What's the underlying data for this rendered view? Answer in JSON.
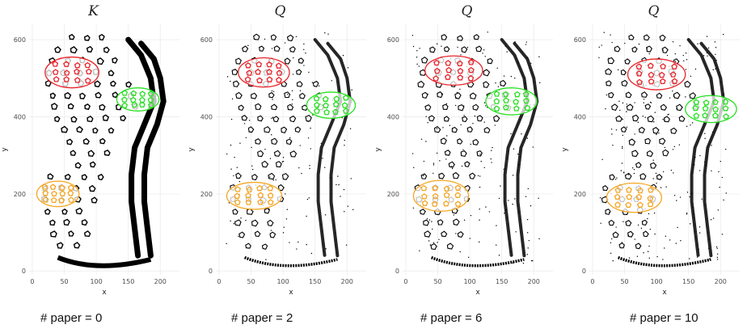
{
  "chart_data": [
    {
      "type": "scatter",
      "title": "K",
      "caption": "# paper = 0",
      "xlabel": "x",
      "ylabel": "y",
      "xlim": [
        -5,
        230
      ],
      "ylim": [
        -10,
        640
      ],
      "x_ticks": [
        0,
        50,
        100,
        150,
        200
      ],
      "y_ticks": [
        0,
        200,
        400,
        600
      ],
      "grid": true,
      "regions": [
        {
          "color": "#e8232a",
          "cx": 62,
          "cy": 515,
          "rx": 42,
          "ry": 40
        },
        {
          "color": "#27e021",
          "cx": 165,
          "cy": 445,
          "rx": 33,
          "ry": 30
        },
        {
          "color": "#f5a623",
          "cx": 40,
          "cy": 200,
          "rx": 33,
          "ry": 33
        }
      ]
    },
    {
      "type": "scatter",
      "title": "Q",
      "caption": "# paper = 2",
      "xlabel": "x",
      "ylabel": "y",
      "xlim": [
        -5,
        230
      ],
      "ylim": [
        -10,
        640
      ],
      "x_ticks": [
        0,
        50,
        100,
        150,
        200
      ],
      "y_ticks": [
        0,
        200,
        400,
        600
      ],
      "grid": true,
      "regions": [
        {
          "color": "#e8232a",
          "cx": 70,
          "cy": 515,
          "rx": 40,
          "ry": 38
        },
        {
          "color": "#27e021",
          "cx": 175,
          "cy": 430,
          "rx": 38,
          "ry": 34
        },
        {
          "color": "#f5a623",
          "cx": 55,
          "cy": 195,
          "rx": 43,
          "ry": 35
        }
      ]
    },
    {
      "type": "scatter",
      "title": "Q",
      "caption": "# paper = 6",
      "xlabel": "x",
      "ylabel": "y",
      "xlim": [
        -5,
        230
      ],
      "ylim": [
        -10,
        640
      ],
      "x_ticks": [
        0,
        50,
        100,
        150,
        200
      ],
      "y_ticks": [
        0,
        200,
        400,
        600
      ],
      "grid": true,
      "regions": [
        {
          "color": "#e8232a",
          "cx": 75,
          "cy": 520,
          "rx": 45,
          "ry": 38
        },
        {
          "color": "#27e021",
          "cx": 165,
          "cy": 440,
          "rx": 40,
          "ry": 35
        },
        {
          "color": "#f5a623",
          "cx": 55,
          "cy": 195,
          "rx": 43,
          "ry": 40
        }
      ]
    },
    {
      "type": "scatter",
      "title": "Q",
      "caption": "# paper = 10",
      "xlabel": "x",
      "ylabel": "y",
      "xlim": [
        -5,
        230
      ],
      "ylim": [
        -10,
        640
      ],
      "x_ticks": [
        0,
        50,
        100,
        150,
        200
      ],
      "y_ticks": [
        0,
        200,
        400,
        600
      ],
      "grid": true,
      "regions": [
        {
          "color": "#e8232a",
          "cx": 100,
          "cy": 510,
          "rx": 45,
          "ry": 40
        },
        {
          "color": "#27e021",
          "cx": 185,
          "cy": 420,
          "rx": 40,
          "ry": 35
        },
        {
          "color": "#f5a623",
          "cx": 65,
          "cy": 190,
          "rx": 43,
          "ry": 38
        }
      ]
    }
  ]
}
